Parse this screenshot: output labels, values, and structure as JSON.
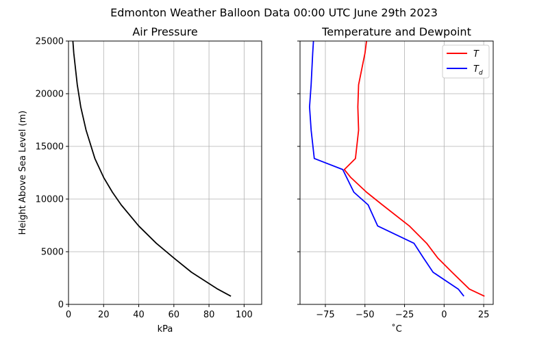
{
  "suptitle": "Edmonton Weather Balloon Data 00:00 UTC June 29th 2023",
  "chart_data": [
    {
      "type": "line",
      "title": "Air Pressure",
      "xlabel": "kPa",
      "ylabel": "Height Above Sea Level (m)",
      "xlim": [
        0,
        110
      ],
      "ylim": [
        0,
        25000
      ],
      "xticks": [
        0,
        20,
        40,
        60,
        80,
        100
      ],
      "yticks": [
        0,
        5000,
        10000,
        15000,
        20000,
        25000
      ],
      "grid": true,
      "series": [
        {
          "color": "#000000",
          "points": [
            [
              92.5,
              770
            ],
            [
              85,
              1450
            ],
            [
              70,
              3050
            ],
            [
              60,
              4400
            ],
            [
              50,
              5800
            ],
            [
              40,
              7450
            ],
            [
              30,
              9450
            ],
            [
              25,
              10650
            ],
            [
              20,
              12050
            ],
            [
              15,
              13850
            ],
            [
              10,
              16550
            ],
            [
              7,
              18750
            ],
            [
              5,
              20850
            ],
            [
              3,
              23850
            ],
            [
              2.5,
              25000
            ]
          ]
        }
      ]
    },
    {
      "type": "line",
      "title": "Temperature and Dewpoint",
      "xlabel": "˚C",
      "ylabel": "",
      "xlim": [
        -91,
        31
      ],
      "ylim": [
        0,
        25000
      ],
      "xticks": [
        -75,
        -50,
        -25,
        0,
        25
      ],
      "xticklabels": [
        "−75",
        "−50",
        "−25",
        "0",
        "25"
      ],
      "yticks": [
        0,
        5000,
        10000,
        15000,
        20000,
        25000
      ],
      "grid": true,
      "legend": "top-right",
      "series": [
        {
          "name": "T",
          "color": "#ff0000",
          "points": [
            [
              25.5,
              770
            ],
            [
              16,
              1450
            ],
            [
              5,
              3050
            ],
            [
              -4,
              4400
            ],
            [
              -11,
              5800
            ],
            [
              -22,
              7450
            ],
            [
              -39,
              9450
            ],
            [
              -49,
              10650
            ],
            [
              -59,
              12050
            ],
            [
              -63,
              12800
            ],
            [
              -56,
              13850
            ],
            [
              -54,
              16550
            ],
            [
              -54.5,
              18750
            ],
            [
              -54,
              20850
            ],
            [
              -50,
              23850
            ],
            [
              -49,
              25000
            ]
          ]
        },
        {
          "name": "T_d",
          "color": "#0000ff",
          "points": [
            [
              12.5,
              770
            ],
            [
              9,
              1450
            ],
            [
              -7,
              3050
            ],
            [
              -13,
              4400
            ],
            [
              -19,
              5800
            ],
            [
              -42,
              7450
            ],
            [
              -48,
              9450
            ],
            [
              -57,
              10650
            ],
            [
              -64,
              12800
            ],
            [
              -82,
              13850
            ],
            [
              -84,
              16550
            ],
            [
              -85,
              18750
            ],
            [
              -84,
              20850
            ],
            [
              -83,
              23850
            ],
            [
              -82.5,
              25000
            ]
          ]
        }
      ]
    }
  ]
}
